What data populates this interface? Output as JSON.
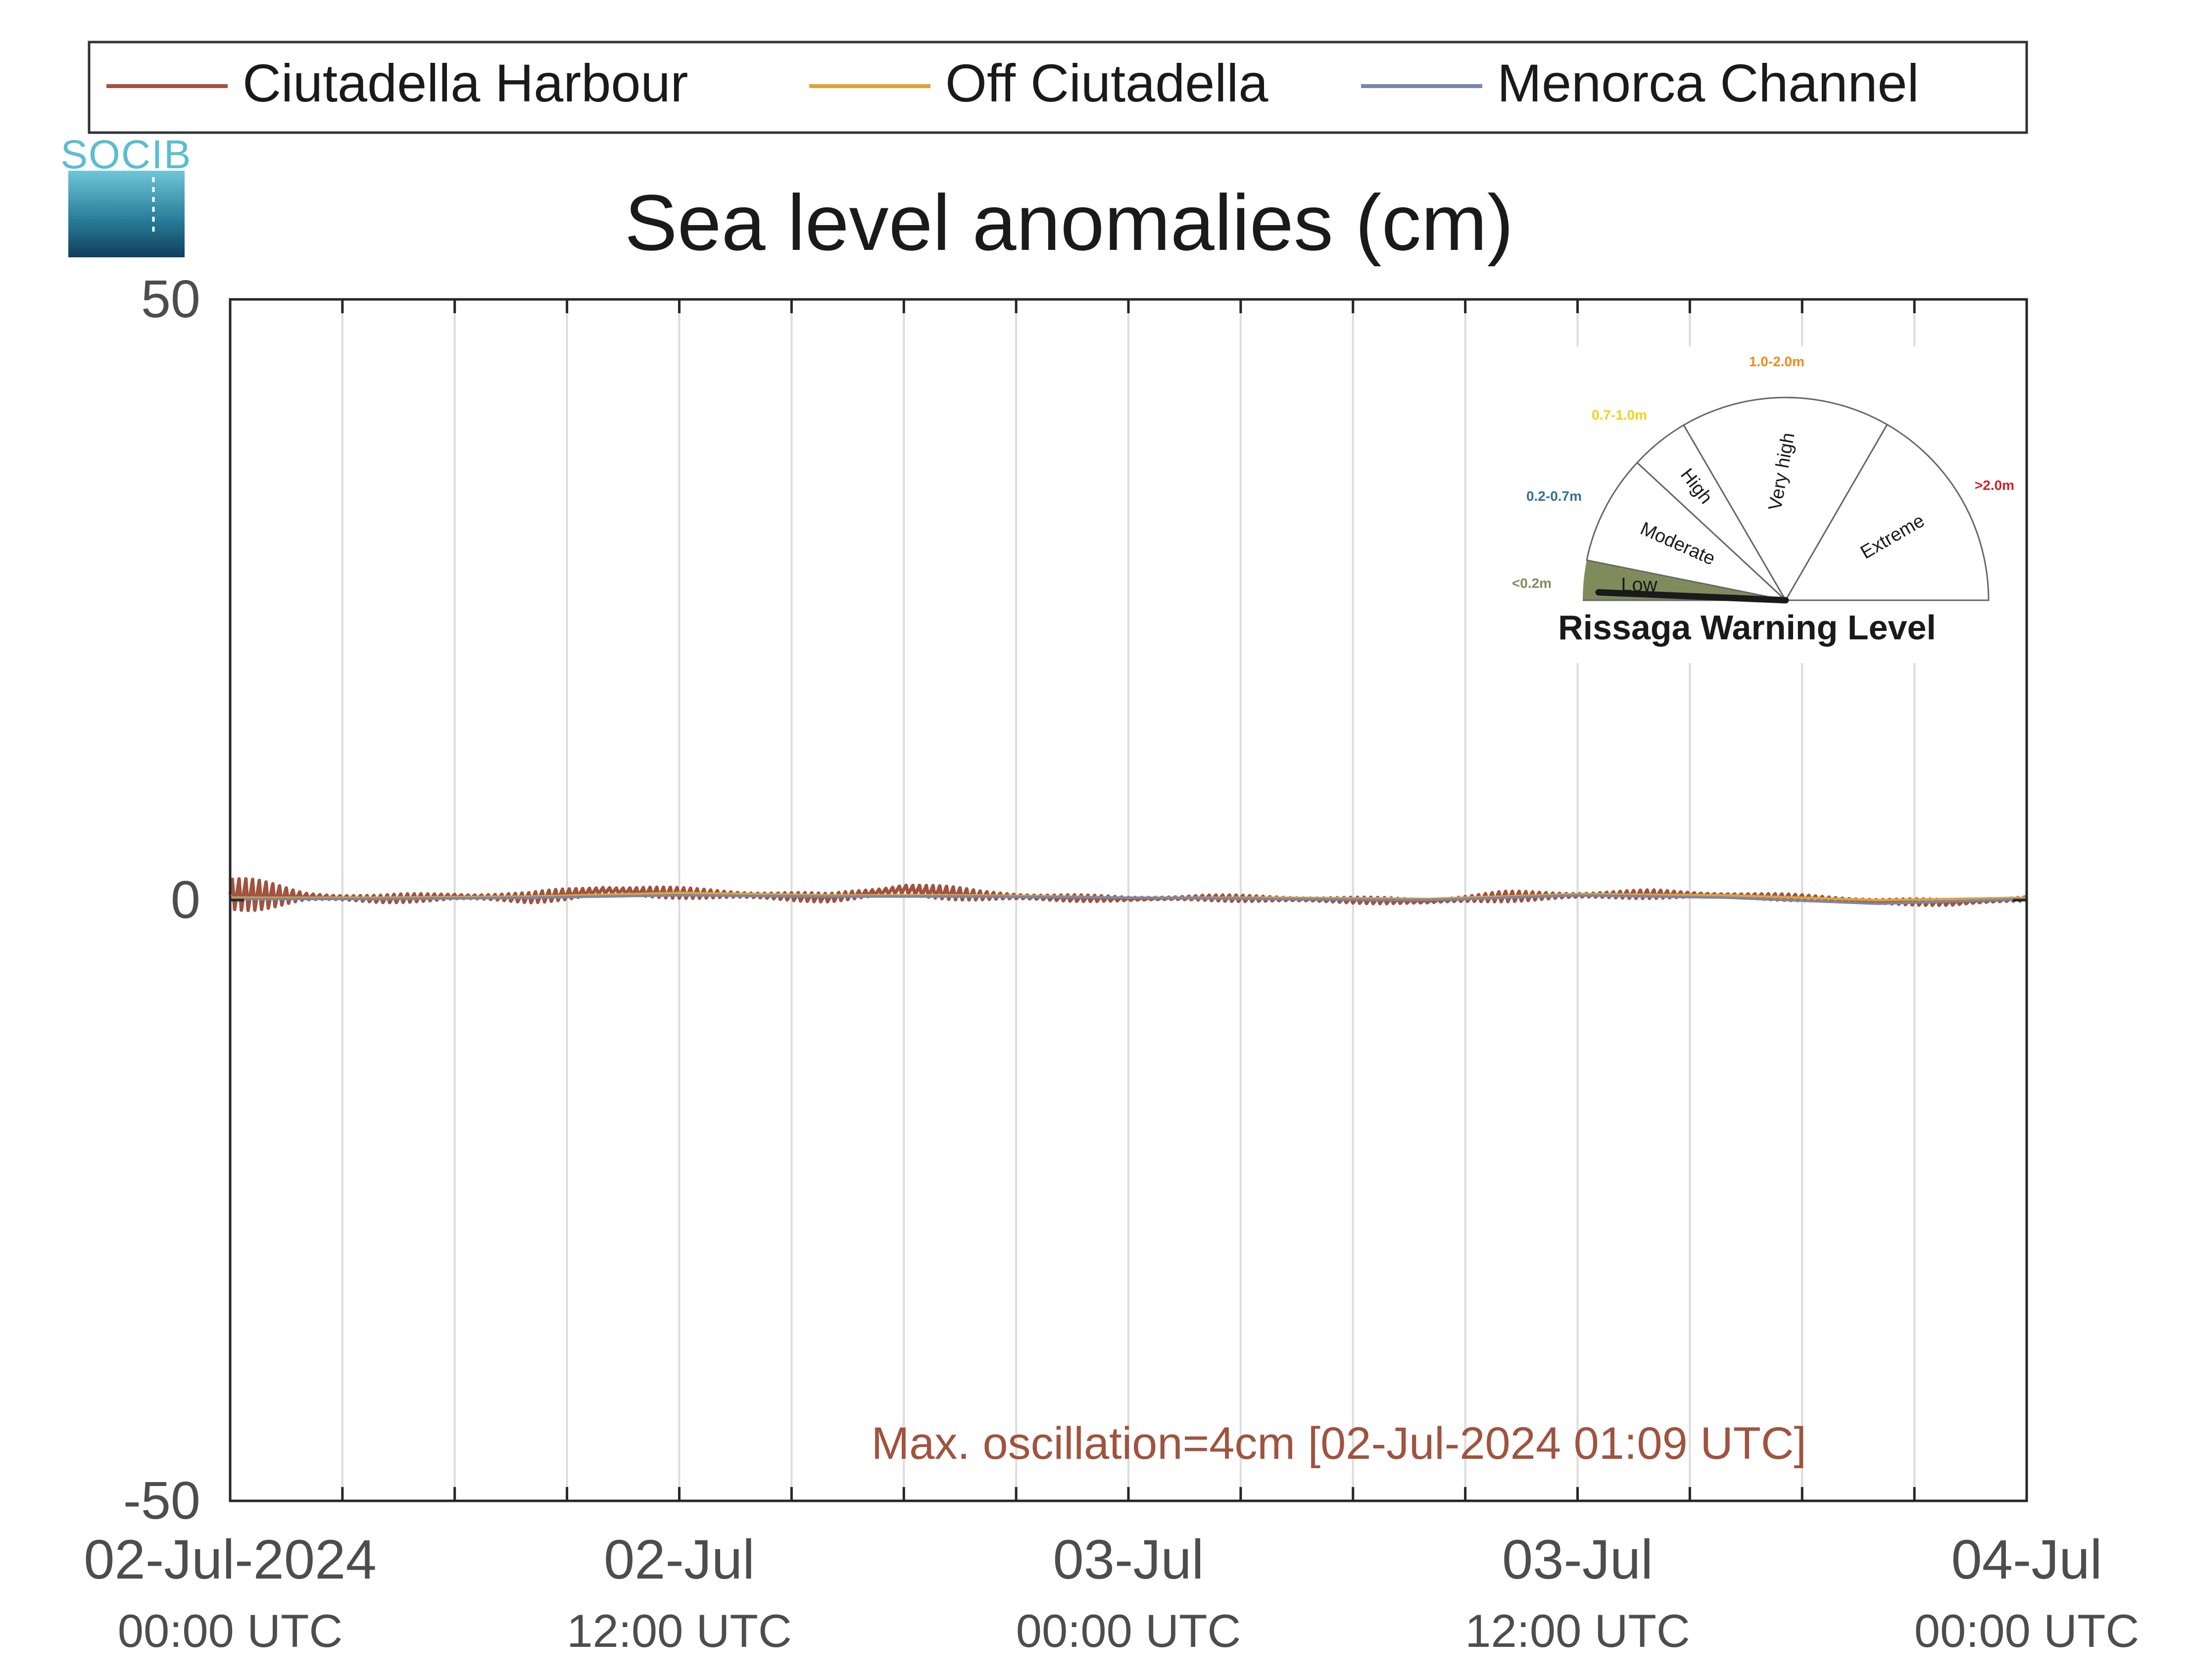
{
  "chart_data": {
    "type": "line",
    "title": "Sea level anomalies (cm)",
    "xlabel": "",
    "ylabel": "",
    "ylim": [
      -50,
      50
    ],
    "yticks": [
      50,
      0,
      -50
    ],
    "xlim": [
      "2024-07-02 00:00",
      "2024-07-04 00:00"
    ],
    "xticks": [
      {
        "date": "02-Jul-2024",
        "time": "00:00 UTC"
      },
      {
        "date": "02-Jul",
        "time": "12:00 UTC"
      },
      {
        "date": "03-Jul",
        "time": "00:00 UTC"
      },
      {
        "date": "03-Jul",
        "time": "12:00 UTC"
      },
      {
        "date": "04-Jul",
        "time": "00:00 UTC"
      }
    ],
    "grid_vertical_hours": [
      3,
      6,
      9,
      12,
      15,
      18,
      21,
      24,
      27,
      30,
      33,
      36,
      39,
      42,
      45
    ],
    "legend": {
      "placement": "top",
      "entries": [
        "Ciutadella Harbour",
        "Off Ciutadella",
        "Menorca Channel"
      ]
    },
    "series": [
      {
        "name": "Ciutadella Harbour",
        "color": "#a0533e",
        "hours": [
          0,
          2,
          4,
          6,
          8,
          10,
          12,
          14,
          16,
          18,
          20,
          22,
          24,
          26,
          28,
          30,
          32,
          34,
          36,
          38,
          40,
          42,
          44,
          46,
          48
        ],
        "values": [
          0.5,
          0.3,
          0.1,
          0.3,
          0.2,
          0.8,
          0.6,
          0.4,
          0.2,
          0.9,
          0.4,
          0.2,
          0.1,
          0.2,
          0.1,
          0.0,
          -0.1,
          0.3,
          0.4,
          0.5,
          0.4,
          0.2,
          -0.1,
          -0.2,
          0.1
        ],
        "oscillation_amplitude": [
          2.0,
          0.5,
          0.4,
          0.4,
          0.5,
          0.7,
          0.5,
          0.5,
          0.4,
          0.8,
          0.5,
          0.4,
          0.2,
          0.3,
          0.3,
          0.3,
          0.3,
          0.5,
          0.4,
          0.4,
          0.3,
          0.3,
          0.3,
          0.3,
          0.3
        ]
      },
      {
        "name": "Off Ciutadella",
        "color": "#e0a23a",
        "hours": [
          0,
          4,
          8,
          12,
          16,
          20,
          24,
          28,
          32,
          36,
          40,
          44,
          48
        ],
        "values": [
          0.2,
          0.2,
          0.3,
          0.6,
          0.4,
          0.4,
          0.2,
          0.2,
          0.1,
          0.5,
          0.4,
          0.0,
          0.2
        ]
      },
      {
        "name": "Menorca Channel",
        "color": "#7b86a8",
        "hours": [
          0,
          4,
          8,
          12,
          16,
          20,
          24,
          28,
          32,
          36,
          40,
          44,
          48
        ],
        "values": [
          0.1,
          0.1,
          0.2,
          0.4,
          0.3,
          0.3,
          0.2,
          0.1,
          0.0,
          0.4,
          0.2,
          -0.3,
          0.1
        ]
      }
    ],
    "annotation": {
      "text": "Max. oscillation=4cm [02-Jul-2024 01:09 UTC]",
      "color": "#a0533e"
    }
  },
  "logo": {
    "text": "SOCIB"
  },
  "gauge": {
    "title": "Rissaga Warning Level",
    "current_level": "Low",
    "levels": [
      {
        "name": "Low",
        "range": "<0.2m",
        "color": "#7f8d5b"
      },
      {
        "name": "Moderate",
        "range": "0.2-0.7m",
        "color": "#2f6f9a"
      },
      {
        "name": "High",
        "range": "0.7-1.0m",
        "color": "#f2d21b"
      },
      {
        "name": "Very high",
        "range": "1.0-2.0m",
        "color": "#f08a1c"
      },
      {
        "name": "Extreme",
        "range": ">2.0m",
        "color": "#d42027"
      }
    ]
  }
}
